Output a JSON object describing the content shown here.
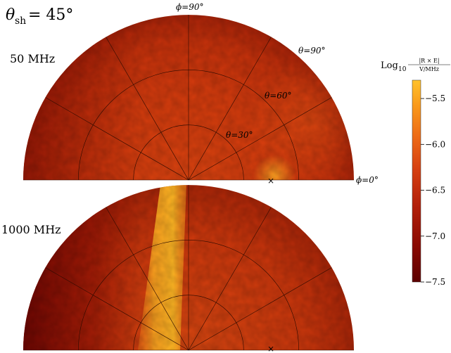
{
  "figure": {
    "shower_angle_label": "θ",
    "shower_angle_sub": "sh",
    "shower_angle_value": "= 45°"
  },
  "colorbar": {
    "label_prefix": "Log",
    "label_base": "10",
    "numerator": "|R × E|",
    "denominator": "V/MHz",
    "ticks": [
      "−5.5",
      "−6.0",
      "−6.5",
      "−7.0",
      "−7.5"
    ],
    "colors": [
      "#5c0000",
      "#8a0a02",
      "#b3200a",
      "#d64012",
      "#ed6a16",
      "#f9981a",
      "#ffc22c"
    ]
  },
  "chart_data": [
    {
      "type": "heatmap",
      "projection": "polar half-disk",
      "panel_label": "50 MHz",
      "angular_labels": [
        "ϕ=90°",
        "ϕ=0°"
      ],
      "radial_labels": [
        "θ=30°",
        "θ=60°",
        "θ=90°"
      ],
      "phi_range_deg": [
        0,
        180
      ],
      "theta_range_deg": [
        0,
        90
      ],
      "value_range": [
        -7.5,
        -5.3
      ],
      "typical_value": -6.5,
      "marker": {
        "symbol": "×",
        "phi_deg": 0,
        "theta_deg": 45,
        "note": "peak near marker ≈ −6.0"
      }
    },
    {
      "type": "heatmap",
      "projection": "polar half-disk",
      "panel_label": "1000 MHz",
      "angular_labels": [],
      "radial_labels": [],
      "phi_range_deg": [
        0,
        180
      ],
      "theta_range_deg": [
        0,
        90
      ],
      "value_range": [
        -7.5,
        -5.3
      ],
      "typical_value": -6.6,
      "features": [
        {
          "description": "bright band near ϕ≈100°",
          "value": -5.6
        },
        {
          "description": "dark region near ϕ≈180°",
          "value": -7.3
        }
      ],
      "marker": {
        "symbol": "×",
        "phi_deg": 0,
        "theta_deg": 45
      }
    }
  ]
}
